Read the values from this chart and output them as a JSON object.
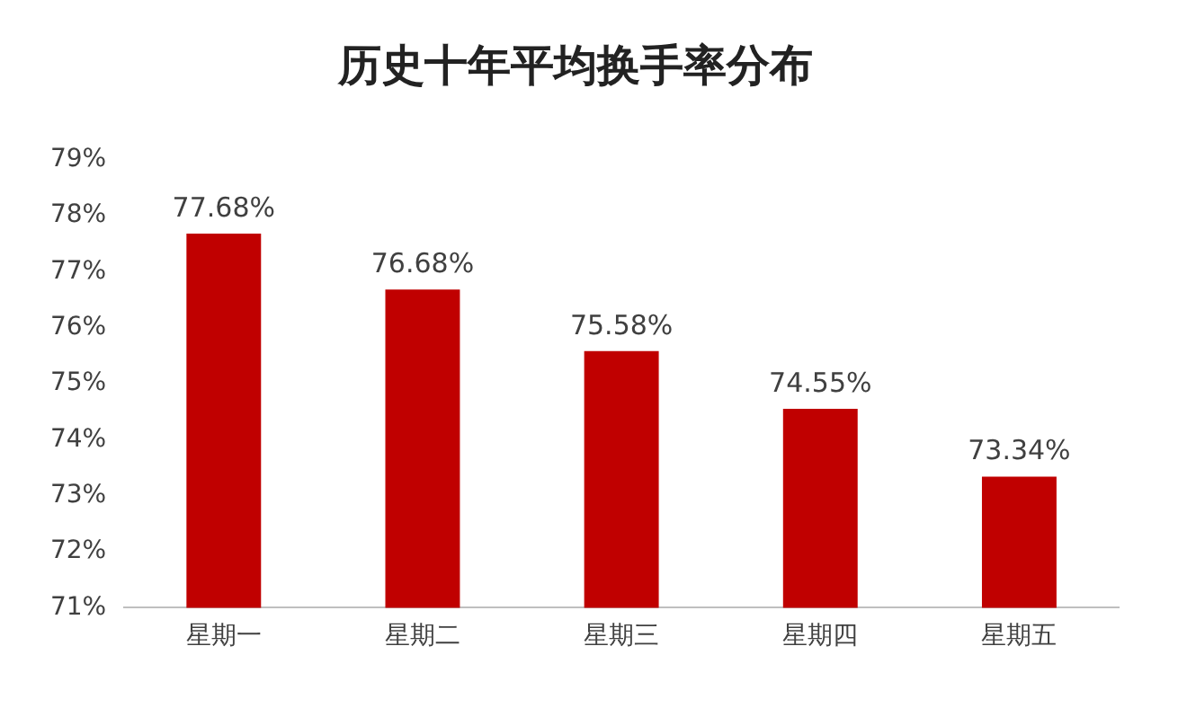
{
  "chart_data": {
    "type": "bar",
    "title": "历史十年平均换手率分布",
    "categories": [
      "星期一",
      "星期二",
      "星期三",
      "星期四",
      "星期五"
    ],
    "values": [
      77.68,
      76.68,
      75.58,
      74.55,
      73.34
    ],
    "value_labels": [
      "77.68%",
      "76.68%",
      "75.58%",
      "74.55%",
      "73.34%"
    ],
    "color": "#c00000",
    "ylim": [
      71,
      79
    ],
    "yticks": [
      {
        "value": 71,
        "label": "71%"
      },
      {
        "value": 72,
        "label": "72%"
      },
      {
        "value": 73,
        "label": "73%"
      },
      {
        "value": 74,
        "label": "74%"
      },
      {
        "value": 75,
        "label": "75%"
      },
      {
        "value": 76,
        "label": "76%"
      },
      {
        "value": 77,
        "label": "77%"
      },
      {
        "value": 78,
        "label": "78%"
      },
      {
        "value": 79,
        "label": "79%"
      }
    ],
    "grid": false,
    "legend": false
  }
}
